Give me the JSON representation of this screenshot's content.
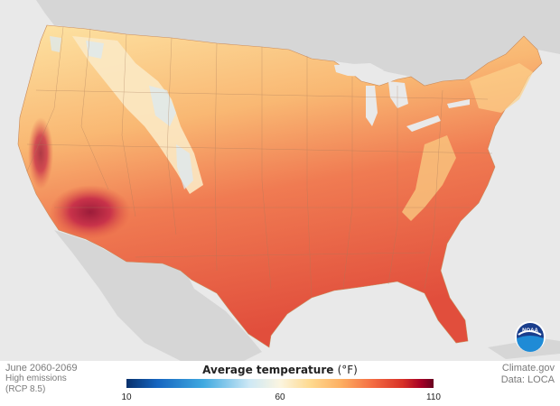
{
  "map": {
    "period": "June 2060-2069",
    "scenario_line1": "High emissions",
    "scenario_line2": "(RCP 8.5)",
    "source_site": "Climate.gov",
    "source_data": "Data: LOCA",
    "logo_text": "NOAA",
    "region": "Contiguous United States"
  },
  "legend": {
    "title": "Average temperature",
    "unit": "(°F)",
    "min_label": "10",
    "mid_label": "60",
    "max_label": "110",
    "min": 10,
    "mid": 60,
    "max": 110,
    "colors": [
      "#08306b",
      "#1565c0",
      "#3fa9e0",
      "#cde8f5",
      "#fbf5e0",
      "#fed98e",
      "#fdae61",
      "#f46d43",
      "#d73027",
      "#a50026",
      "#67001f"
    ]
  },
  "colors": {
    "land": "#f5b766",
    "hot": "#e0553c",
    "ocean": "#e9e9e9",
    "neighbors": "#d6d6d6"
  }
}
